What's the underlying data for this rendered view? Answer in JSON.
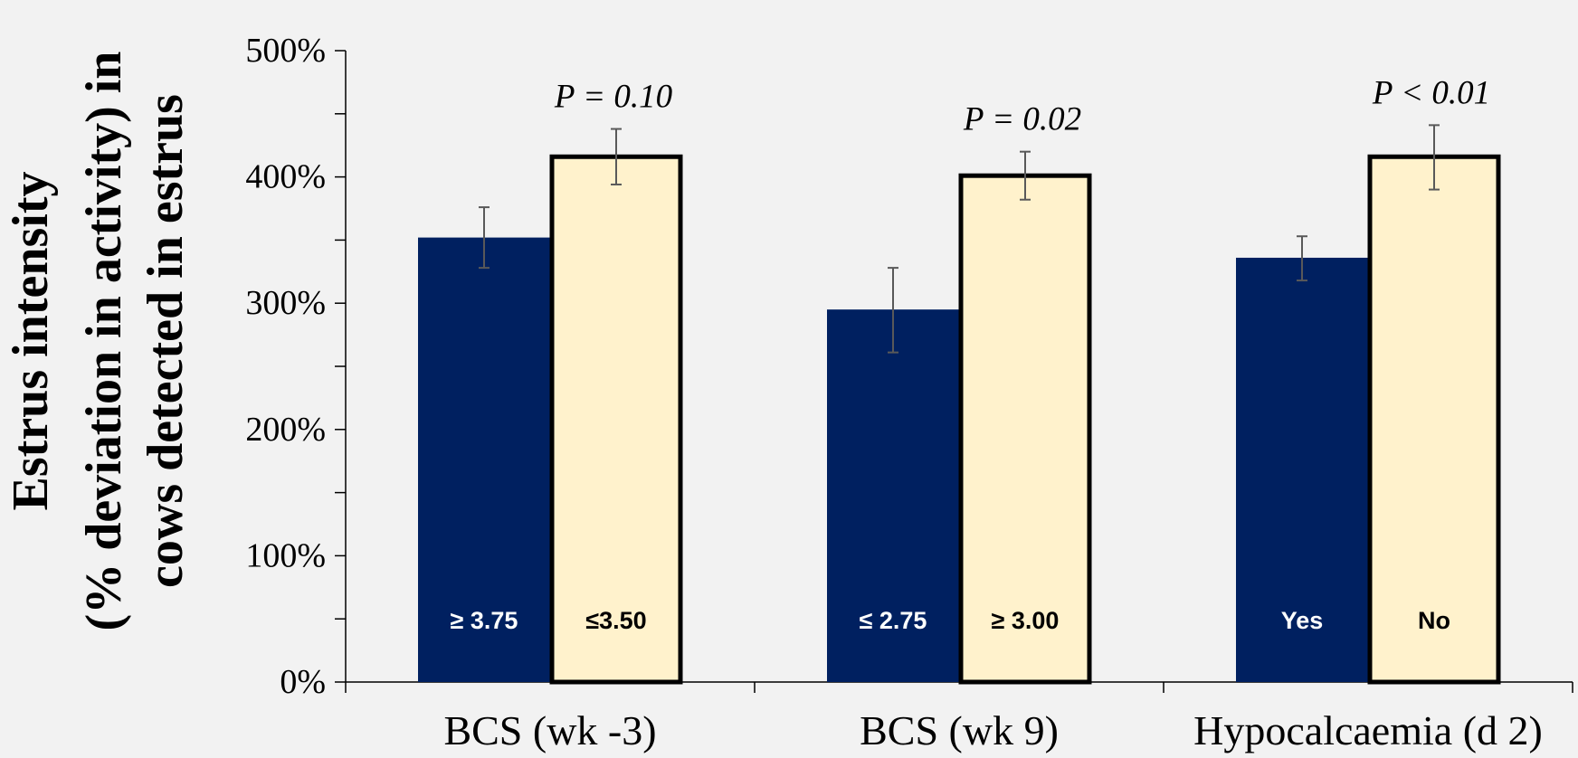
{
  "chart_data": {
    "type": "bar",
    "ylabel_line1": "Estrus intensity",
    "ylabel_line2": "(% deviation in activity) in",
    "ylabel_line3": "cows detected in estrus",
    "ylim": [
      0,
      500
    ],
    "yticks": [
      "0%",
      "100%",
      "200%",
      "300%",
      "400%",
      "500%"
    ],
    "groups": [
      {
        "category": "BCS (wk -3)",
        "p_value": "P = 0.10",
        "bars": [
          {
            "label": "≥ 3.75",
            "value": 352,
            "err_low": 328,
            "err_high": 376
          },
          {
            "label": "≤3.50",
            "value": 416,
            "err_low": 394,
            "err_high": 438
          }
        ]
      },
      {
        "category": "BCS (wk 9)",
        "p_value": "P = 0.02",
        "bars": [
          {
            "label": "≤ 2.75",
            "value": 295,
            "err_low": 261,
            "err_high": 328
          },
          {
            "label": "≥ 3.00",
            "value": 401,
            "err_low": 382,
            "err_high": 420
          }
        ]
      },
      {
        "category": "Hypocalcaemia (d 2)",
        "p_value": "P < 0.01",
        "bars": [
          {
            "label": "Yes",
            "value": 336,
            "err_low": 318,
            "err_high": 353
          },
          {
            "label": "No",
            "value": 416,
            "err_low": 390,
            "err_high": 441
          }
        ]
      }
    ],
    "colors": {
      "series1": "#002060",
      "series2": "#fff2cc",
      "series2_border": "#000000",
      "error_bar": "#595959",
      "axis": "#000000",
      "background": "#f2f2f2"
    },
    "grid": false
  }
}
